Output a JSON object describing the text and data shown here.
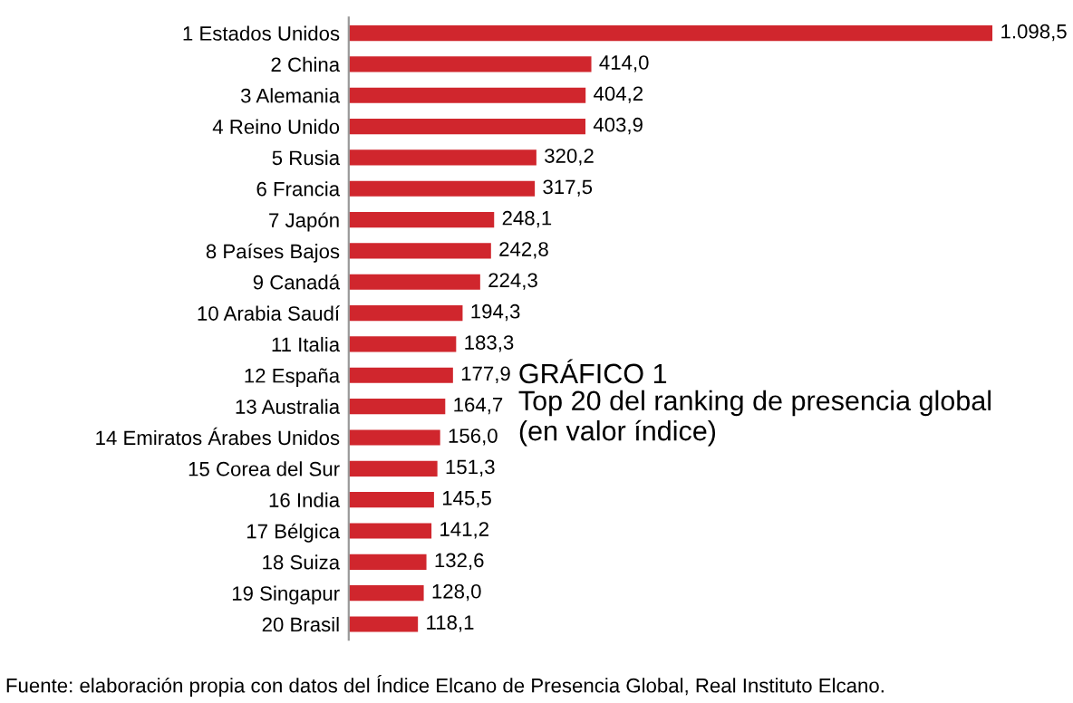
{
  "chart_data": {
    "type": "bar",
    "orientation": "horizontal",
    "title": "GRÁFICO 1",
    "subtitle": "Top 20 del ranking de presencia global\n(en valor índice)",
    "categories": [
      "1 Estados Unidos",
      "2 China",
      "3 Alemania",
      "4 Reino Unido",
      "5 Rusia",
      "6 Francia",
      "7 Japón",
      "8 Países Bajos",
      "9 Canadá",
      "10 Arabia Saudí",
      "11 Italia",
      "12 España",
      "13 Australia",
      "14 Emiratos Árabes Unidos",
      "15 Corea del Sur",
      "16 India",
      "17 Bélgica",
      "18 Suiza",
      "19 Singapur",
      "20 Brasil"
    ],
    "values": [
      1098.5,
      414.0,
      404.2,
      403.9,
      320.2,
      317.5,
      248.1,
      242.8,
      224.3,
      194.3,
      183.3,
      177.9,
      164.7,
      156.0,
      151.3,
      145.5,
      141.2,
      132.6,
      128.0,
      118.1
    ],
    "value_labels": [
      "1.098,5",
      "414,0",
      "404,2",
      "403,9",
      "320,2",
      "317,5",
      "248,1",
      "242,8",
      "224,3",
      "194,3",
      "183,3",
      "177,9",
      "164,7",
      "156,0",
      "151,3",
      "145,5",
      "141,2",
      "132,6",
      "128,0",
      "118,1"
    ],
    "color": "#d0262d",
    "grid": false,
    "legend": false,
    "annotations": [
      "Fuente: elaboración propia con datos del Índice Elcano de Presencia Global, Real Instituto Elcano."
    ]
  }
}
